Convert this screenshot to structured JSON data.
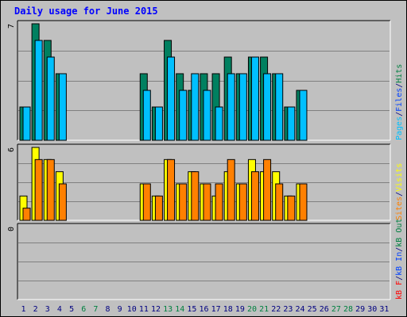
{
  "chart_data": {
    "title": "Daily usage for June 2015",
    "days": [
      "1",
      "2",
      "3",
      "4",
      "5",
      "6",
      "7",
      "8",
      "9",
      "10",
      "11",
      "12",
      "13",
      "14",
      "15",
      "16",
      "17",
      "18",
      "19",
      "20",
      "21",
      "22",
      "23",
      "24",
      "25",
      "26",
      "27",
      "28",
      "29",
      "30",
      "31"
    ],
    "weekend_days": [
      6,
      7,
      13,
      14,
      20,
      21,
      27,
      28
    ],
    "panels": [
      {
        "type": "bar",
        "name": "hits-files-pages",
        "ymax_label": "7",
        "ylim": [
          0,
          7
        ],
        "right_labels": [
          {
            "text": "Pages",
            "color": "#00c0ff"
          },
          {
            "text": "/",
            "color": "#000080"
          },
          {
            "text": "Files",
            "color": "#0040ff"
          },
          {
            "text": "/",
            "color": "#000080"
          },
          {
            "text": "Hits",
            "color": "#008040"
          }
        ],
        "series": [
          {
            "key": "hits",
            "color": "#008060",
            "values": [
              2,
              7,
              6,
              4,
              0,
              0,
              0,
              0,
              0,
              0,
              4,
              2,
              6,
              4,
              3,
              4,
              4,
              5,
              4,
              5,
              5,
              4,
              2,
              3,
              0,
              0,
              0,
              0,
              0,
              0,
              0
            ]
          },
          {
            "key": "files",
            "color": "#00c0ff",
            "values": [
              2,
              6,
              5,
              4,
              0,
              0,
              0,
              0,
              0,
              0,
              3,
              2,
              5,
              3,
              4,
              3,
              2,
              4,
              4,
              5,
              4,
              4,
              2,
              3,
              0,
              0,
              0,
              0,
              0,
              0,
              0
            ]
          }
        ]
      },
      {
        "type": "bar",
        "name": "visits-sites",
        "ymax_label": "6",
        "ylim": [
          0,
          6
        ],
        "right_labels": [
          {
            "text": "Sites",
            "color": "#ff8000"
          },
          {
            "text": "/",
            "color": "#000080"
          },
          {
            "text": "Visits",
            "color": "#ffff00"
          }
        ],
        "series": [
          {
            "key": "visits",
            "color": "#ffff00",
            "values": [
              2,
              6,
              5,
              4,
              0,
              0,
              0,
              0,
              0,
              0,
              3,
              2,
              5,
              3,
              4,
              3,
              2,
              4,
              3,
              5,
              4,
              4,
              2,
              3,
              0,
              0,
              0,
              0,
              0,
              0,
              0
            ]
          },
          {
            "key": "sites",
            "color": "#ff8000",
            "values": [
              1,
              5,
              5,
              3,
              0,
              0,
              0,
              0,
              0,
              0,
              3,
              2,
              5,
              3,
              4,
              3,
              3,
              5,
              3,
              4,
              5,
              3,
              2,
              3,
              0,
              0,
              0,
              0,
              0,
              0,
              0
            ]
          }
        ]
      },
      {
        "type": "bar",
        "name": "kbytes",
        "ymax_label": "0",
        "ylim": [
          0,
          1
        ],
        "right_labels": [
          {
            "text": "kB F",
            "color": "#ff0000"
          },
          {
            "text": "/",
            "color": "#000080"
          },
          {
            "text": "kB In",
            "color": "#0040ff"
          },
          {
            "text": "/",
            "color": "#000080"
          },
          {
            "text": "kB Out",
            "color": "#008040"
          }
        ],
        "series": []
      }
    ],
    "colors": {
      "background": "#c0c0c0",
      "title": "#0000ff",
      "axis_label_weekday": "#000080",
      "axis_label_weekend": "#008040",
      "gridline": "#808080"
    }
  }
}
